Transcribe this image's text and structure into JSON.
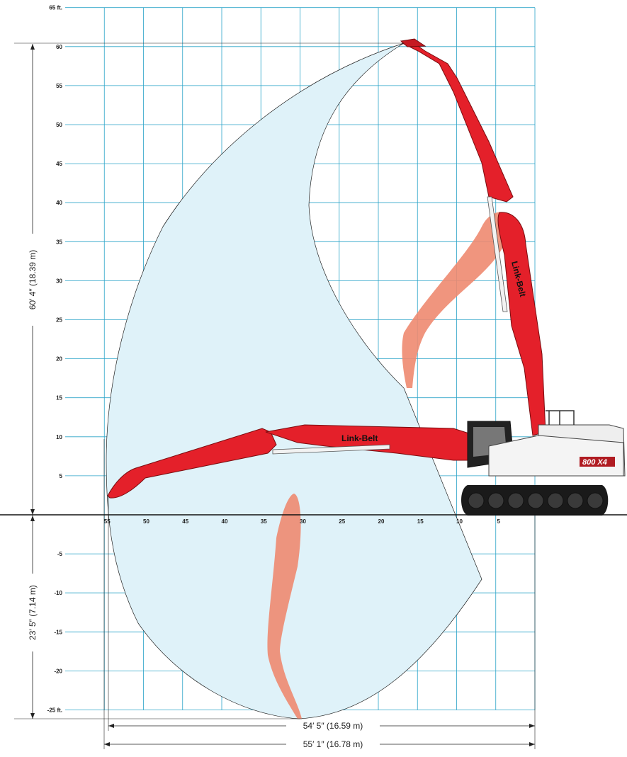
{
  "chart_data": {
    "type": "diagram",
    "x_axis": {
      "unit": "ft",
      "ticks": [
        {
          "value": 55,
          "label": "55"
        },
        {
          "value": 50,
          "label": "50"
        },
        {
          "value": 45,
          "label": "45"
        },
        {
          "value": 40,
          "label": "40"
        },
        {
          "value": 35,
          "label": "35"
        },
        {
          "value": 30,
          "label": "30"
        },
        {
          "value": 25,
          "label": "25"
        },
        {
          "value": 20,
          "label": "20"
        },
        {
          "value": 15,
          "label": "15"
        },
        {
          "value": 10,
          "label": "10"
        },
        {
          "value": 5,
          "label": "5"
        }
      ]
    },
    "y_axis": {
      "unit": "ft",
      "ticks": [
        {
          "value": 65,
          "label": "65 ft."
        },
        {
          "value": 60,
          "label": "60"
        },
        {
          "value": 55,
          "label": "55"
        },
        {
          "value": 50,
          "label": "50"
        },
        {
          "value": 45,
          "label": "45"
        },
        {
          "value": 40,
          "label": "40"
        },
        {
          "value": 35,
          "label": "35"
        },
        {
          "value": 30,
          "label": "30"
        },
        {
          "value": 25,
          "label": "25"
        },
        {
          "value": 20,
          "label": "20"
        },
        {
          "value": 15,
          "label": "15"
        },
        {
          "value": 10,
          "label": "10"
        },
        {
          "value": 5,
          "label": "5"
        },
        {
          "value": -5,
          "label": "-5"
        },
        {
          "value": -10,
          "label": "-10"
        },
        {
          "value": -15,
          "label": "-15"
        },
        {
          "value": -20,
          "label": "-20"
        },
        {
          "value": -25,
          "label": "-25 ft."
        }
      ]
    },
    "dimensions": {
      "max_height": {
        "label": "60′ 4″ (18.39 m)",
        "from_ft": 0,
        "to_ft": 60.33
      },
      "max_depth": {
        "label": "23′ 5″ (7.14 m)",
        "from_ft": 0,
        "to_ft": -23.42
      },
      "reach_ground": {
        "label": "54′ 5″ (16.59 m)",
        "value_ft": 54.42
      },
      "max_reach": {
        "label": "55′ 1″ (16.78 m)",
        "value_ft": 55.08
      }
    },
    "brand": "Link-Belt",
    "model_badge": "800 X4"
  }
}
